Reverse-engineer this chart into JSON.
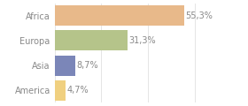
{
  "categories": [
    "Africa",
    "Europa",
    "Asia",
    "America"
  ],
  "values": [
    55.3,
    31.3,
    8.7,
    4.7
  ],
  "labels": [
    "55,3%",
    "31,3%",
    "8,7%",
    "4,7%"
  ],
  "colors": [
    "#e8b98a",
    "#b5c48a",
    "#7b86b8",
    "#f0d080"
  ],
  "background_color": "#ffffff",
  "xlim": [
    0,
    70
  ],
  "bar_height": 0.82,
  "label_fontsize": 7,
  "tick_fontsize": 7,
  "text_color": "#888888",
  "grid_color": "#e0e0e0",
  "grid_ticks": [
    0,
    20,
    40,
    60
  ]
}
